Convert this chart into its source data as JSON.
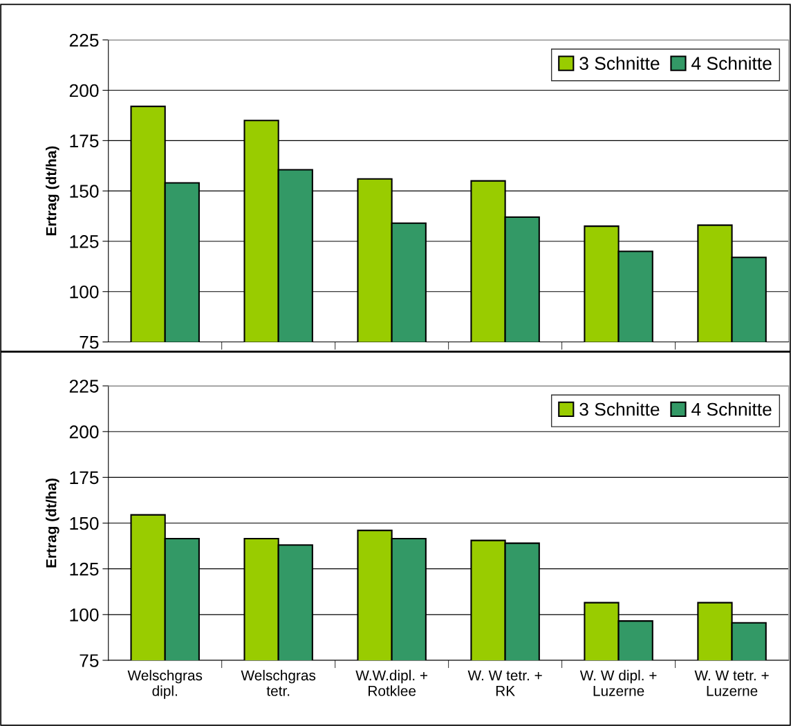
{
  "chart_data": [
    {
      "type": "bar",
      "categories": [
        null,
        null,
        null,
        null,
        null,
        null
      ],
      "ylabel": "Ertrag (dt/ha)",
      "ylim": [
        75,
        225
      ],
      "yticks": [
        75,
        100,
        125,
        150,
        175,
        200,
        225
      ],
      "grid": "y",
      "legend": "top right",
      "series": [
        {
          "name": "3 Schnitte",
          "color": "#99cc00",
          "values": [
            192,
            185,
            156,
            155,
            132.5,
            133
          ]
        },
        {
          "name": "4 Schnitte",
          "color": "#339966",
          "values": [
            154,
            160.5,
            134,
            137,
            120,
            117
          ]
        }
      ]
    },
    {
      "type": "bar",
      "categories": [
        "Welschgras\ndipl.",
        "Welschgras\ntetr.",
        "W.W.dipl. +\nRotklee",
        "W. W tetr. +\nRK",
        "W. W dipl. +\nLuzerne",
        "W. W tetr. +\nLuzerne"
      ],
      "ylabel": "Ertrag (dt/ha)",
      "ylim": [
        75,
        225
      ],
      "yticks": [
        75,
        100,
        125,
        150,
        175,
        200,
        225
      ],
      "grid": "y",
      "legend": "top right",
      "series": [
        {
          "name": "3 Schnitte",
          "color": "#99cc00",
          "values": [
            154.5,
            141.5,
            146,
            140.5,
            106.5,
            106.5
          ]
        },
        {
          "name": "4 Schnitte",
          "color": "#339966",
          "values": [
            141.5,
            138,
            141.5,
            139,
            96.5,
            95.5
          ]
        }
      ]
    }
  ]
}
